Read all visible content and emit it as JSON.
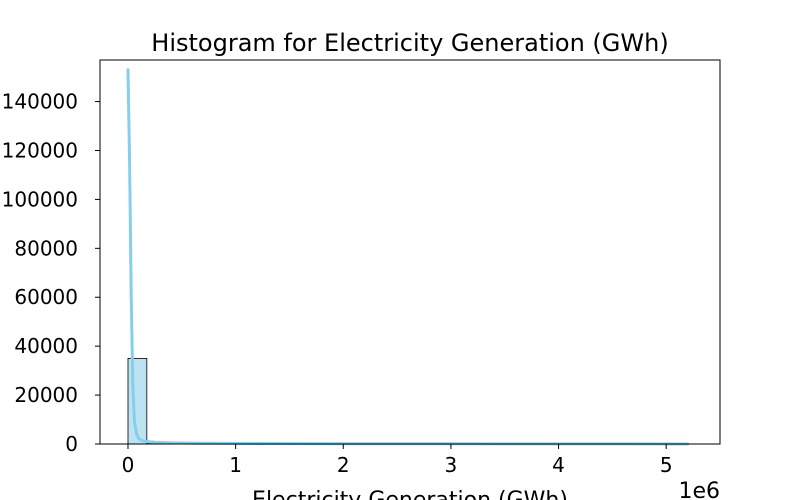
{
  "chart_data": {
    "type": "bar",
    "title": "Histogram for Electricity Generation (GWh)",
    "xlabel": "Electricity Generation (GWh)",
    "ylabel": "",
    "x_offset_text": "1e6",
    "xlim": [
      -260000,
      5500000
    ],
    "ylim": [
      0,
      157000
    ],
    "x_ticks": [
      0,
      1,
      2,
      3,
      4,
      5
    ],
    "x_tick_scale": 1000000,
    "y_ticks": [
      0,
      20000,
      40000,
      60000,
      80000,
      100000,
      120000,
      140000
    ],
    "bins": [
      {
        "start": 0,
        "end": 175000,
        "count": 35000
      },
      {
        "start": 175000,
        "end": 350000,
        "count": 200
      }
    ],
    "kde": {
      "x": [
        0,
        15000,
        30000,
        45000,
        60000,
        80000,
        100000,
        130000,
        170000,
        250000,
        400000,
        700000,
        1200000,
        2000000,
        3000000,
        4000000,
        5200000
      ],
      "y": [
        153000,
        115000,
        60000,
        24000,
        9000,
        4000,
        2200,
        1400,
        1000,
        700,
        450,
        300,
        200,
        120,
        80,
        50,
        20
      ]
    },
    "colors": {
      "bar_fill": "#bde3f3",
      "bar_edge": "#000000",
      "kde_line": "#87ceeb"
    },
    "grid": false,
    "legend": "none"
  }
}
